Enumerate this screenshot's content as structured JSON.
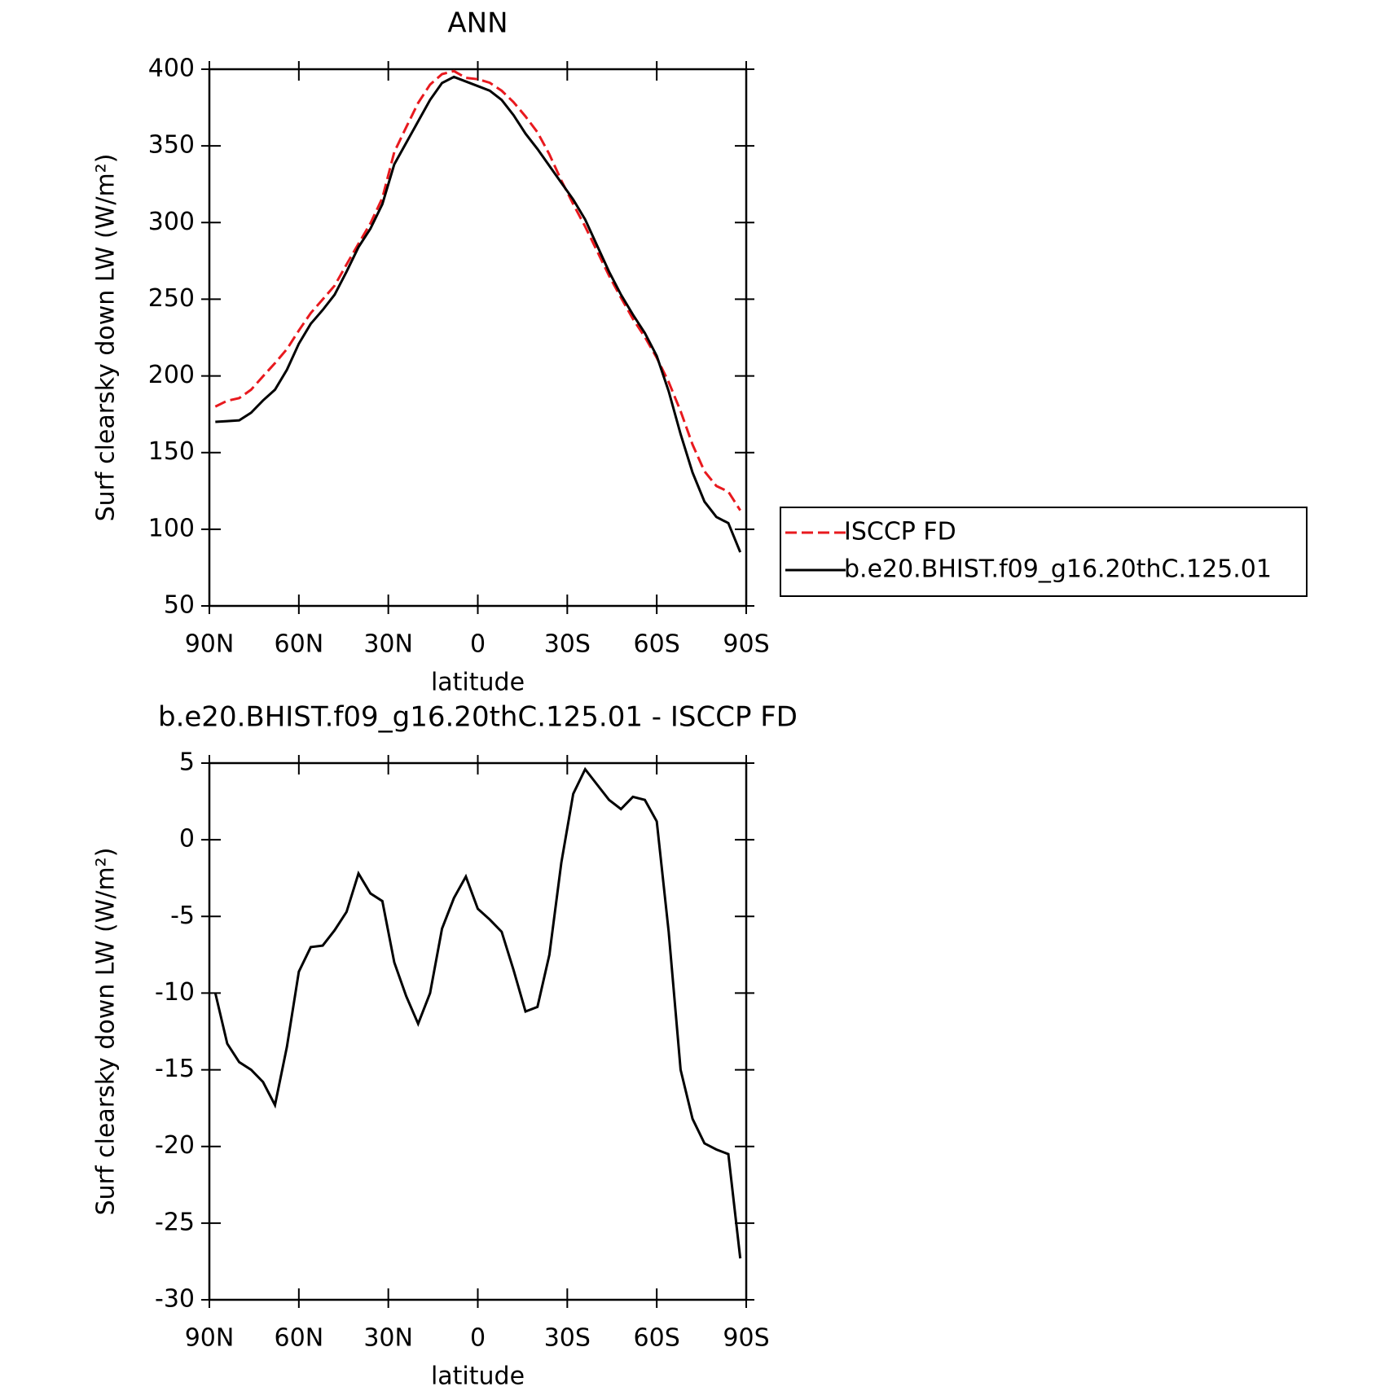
{
  "chart_data": [
    {
      "type": "line",
      "title": "ANN",
      "xlabel": "latitude",
      "ylabel": "Surf clearsky down LW (W/m²)",
      "x": [
        88,
        84,
        80,
        76,
        72,
        68,
        64,
        60,
        56,
        52,
        48,
        44,
        40,
        36,
        32,
        28,
        24,
        20,
        16,
        12,
        8,
        4,
        0,
        -4,
        -8,
        -12,
        -16,
        -20,
        -24,
        -28,
        -32,
        -36,
        -40,
        -44,
        -48,
        -52,
        -56,
        -60,
        -64,
        -68,
        -72,
        -76,
        -80,
        -84,
        -88
      ],
      "series": [
        {
          "name": "ISCCP FD",
          "color": "#e8191e",
          "dash": true,
          "values": [
            180,
            183.8,
            185.5,
            191,
            199.8,
            208.3,
            217.5,
            229.6,
            241,
            249.9,
            258.9,
            272.7,
            286.2,
            299.5,
            316,
            346,
            362.2,
            378,
            390,
            396.8,
            398.8,
            394.4,
            393.5,
            391.2,
            386,
            378.5,
            369.2,
            358.9,
            344.5,
            327.5,
            312,
            297.4,
            281.4,
            265.4,
            251,
            237.2,
            225.4,
            211.8,
            196,
            177,
            155.2,
            137.8,
            128.2,
            124.5,
            112.3
          ]
        },
        {
          "name": "b.e20.BHIST.f09_g16.20thC.125.01",
          "color": "#000000",
          "dash": false,
          "values": [
            170,
            170.5,
            171,
            176,
            184,
            191,
            204,
            221,
            234,
            243,
            253,
            268,
            284,
            296,
            312,
            338,
            352,
            366,
            380,
            391,
            395,
            392,
            389,
            386,
            380,
            370,
            358,
            348,
            337,
            326,
            315,
            302,
            285,
            268,
            253,
            240,
            228,
            213,
            190,
            162,
            137,
            118,
            108,
            104,
            85
          ]
        }
      ],
      "xlim": [
        90,
        -90
      ],
      "xticks": [
        {
          "value": 90,
          "label": "90N"
        },
        {
          "value": 60,
          "label": "60N"
        },
        {
          "value": 30,
          "label": "30N"
        },
        0,
        {
          "value": -30,
          "label": "30S"
        },
        {
          "value": -60,
          "label": "60S"
        },
        {
          "value": -90,
          "label": "90S"
        }
      ],
      "ylim": [
        50,
        400
      ],
      "yticks": [
        50,
        100,
        150,
        200,
        250,
        300,
        350,
        400
      ],
      "legend": "right"
    },
    {
      "type": "line",
      "title": "b.e20.BHIST.f09_g16.20thC.125.01 - ISCCP FD",
      "xlabel": "latitude",
      "ylabel": "Surf clearsky down LW (W/m²)",
      "x": [
        88,
        84,
        80,
        76,
        72,
        68,
        64,
        60,
        56,
        52,
        48,
        44,
        40,
        36,
        32,
        28,
        24,
        20,
        16,
        12,
        8,
        4,
        0,
        -4,
        -8,
        -12,
        -16,
        -20,
        -24,
        -28,
        -32,
        -36,
        -40,
        -44,
        -48,
        -52,
        -56,
        -60,
        -64,
        -68,
        -72,
        -76,
        -80,
        -84,
        -88
      ],
      "series": [
        {
          "color": "#000000",
          "dash": false,
          "values": [
            -10,
            -13.3,
            -14.5,
            -15,
            -15.8,
            -17.3,
            -13.5,
            -8.6,
            -7,
            -6.9,
            -5.9,
            -4.7,
            -2.2,
            -3.5,
            -4,
            -8,
            -10.2,
            -12,
            -10,
            -5.8,
            -3.8,
            -2.4,
            -4.5,
            -5.2,
            -6,
            -8.5,
            -11.2,
            -10.9,
            -7.5,
            -1.5,
            3,
            4.6,
            3.6,
            2.6,
            2,
            2.8,
            2.6,
            1.2,
            -6,
            -15,
            -18.2,
            -19.8,
            -20.2,
            -20.5,
            -27.3
          ]
        }
      ],
      "xlim": [
        90,
        -90
      ],
      "xticks": [
        {
          "value": 90,
          "label": "90N"
        },
        {
          "value": 60,
          "label": "60N"
        },
        {
          "value": 30,
          "label": "30N"
        },
        0,
        {
          "value": -30,
          "label": "30S"
        },
        {
          "value": -60,
          "label": "60S"
        },
        {
          "value": -90,
          "label": "90S"
        }
      ],
      "ylim": [
        -30,
        5
      ],
      "yticks": [
        -30,
        -25,
        -20,
        -15,
        -10,
        -5,
        0,
        5
      ]
    }
  ]
}
